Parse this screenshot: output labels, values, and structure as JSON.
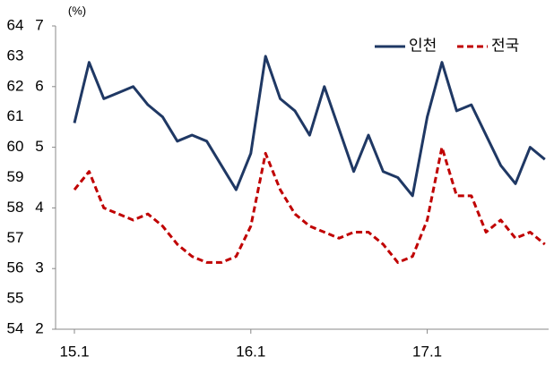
{
  "chart_data": {
    "type": "line",
    "unit_label": "(%)",
    "categories": [
      "15.1",
      null,
      null,
      null,
      null,
      null,
      null,
      null,
      null,
      null,
      null,
      null,
      "16.1",
      null,
      null,
      null,
      null,
      null,
      null,
      null,
      null,
      null,
      null,
      null,
      "17.1",
      null,
      null,
      null,
      null,
      null,
      null,
      null,
      null
    ],
    "series": [
      {
        "name": "인천",
        "color": "#1f3864",
        "dash": false,
        "values": [
          5.4,
          6.4,
          5.8,
          5.9,
          6.0,
          5.7,
          5.5,
          5.1,
          5.2,
          5.1,
          4.7,
          4.3,
          4.9,
          6.5,
          5.8,
          5.6,
          5.2,
          6.0,
          5.3,
          4.6,
          5.2,
          4.6,
          4.5,
          4.2,
          5.5,
          6.4,
          5.6,
          5.7,
          5.2,
          4.7,
          4.4,
          5.0,
          4.8
        ]
      },
      {
        "name": "전국",
        "color": "#c00000",
        "dash": true,
        "values": [
          4.3,
          4.6,
          4.0,
          3.9,
          3.8,
          3.9,
          3.7,
          3.4,
          3.2,
          3.1,
          3.1,
          3.2,
          3.7,
          4.9,
          4.3,
          3.9,
          3.7,
          3.6,
          3.5,
          3.6,
          3.6,
          3.4,
          3.1,
          3.2,
          3.8,
          5.0,
          4.2,
          4.2,
          3.6,
          3.8,
          3.5,
          3.6,
          3.4
        ]
      }
    ],
    "ylim": [
      2,
      7
    ],
    "yticks": [
      2,
      3,
      4,
      5,
      6,
      7
    ],
    "y2lim": [
      54,
      64
    ],
    "y2ticks": [
      54,
      55,
      56,
      57,
      58,
      59,
      60,
      61,
      62,
      63,
      64
    ],
    "legend": "upper right"
  }
}
